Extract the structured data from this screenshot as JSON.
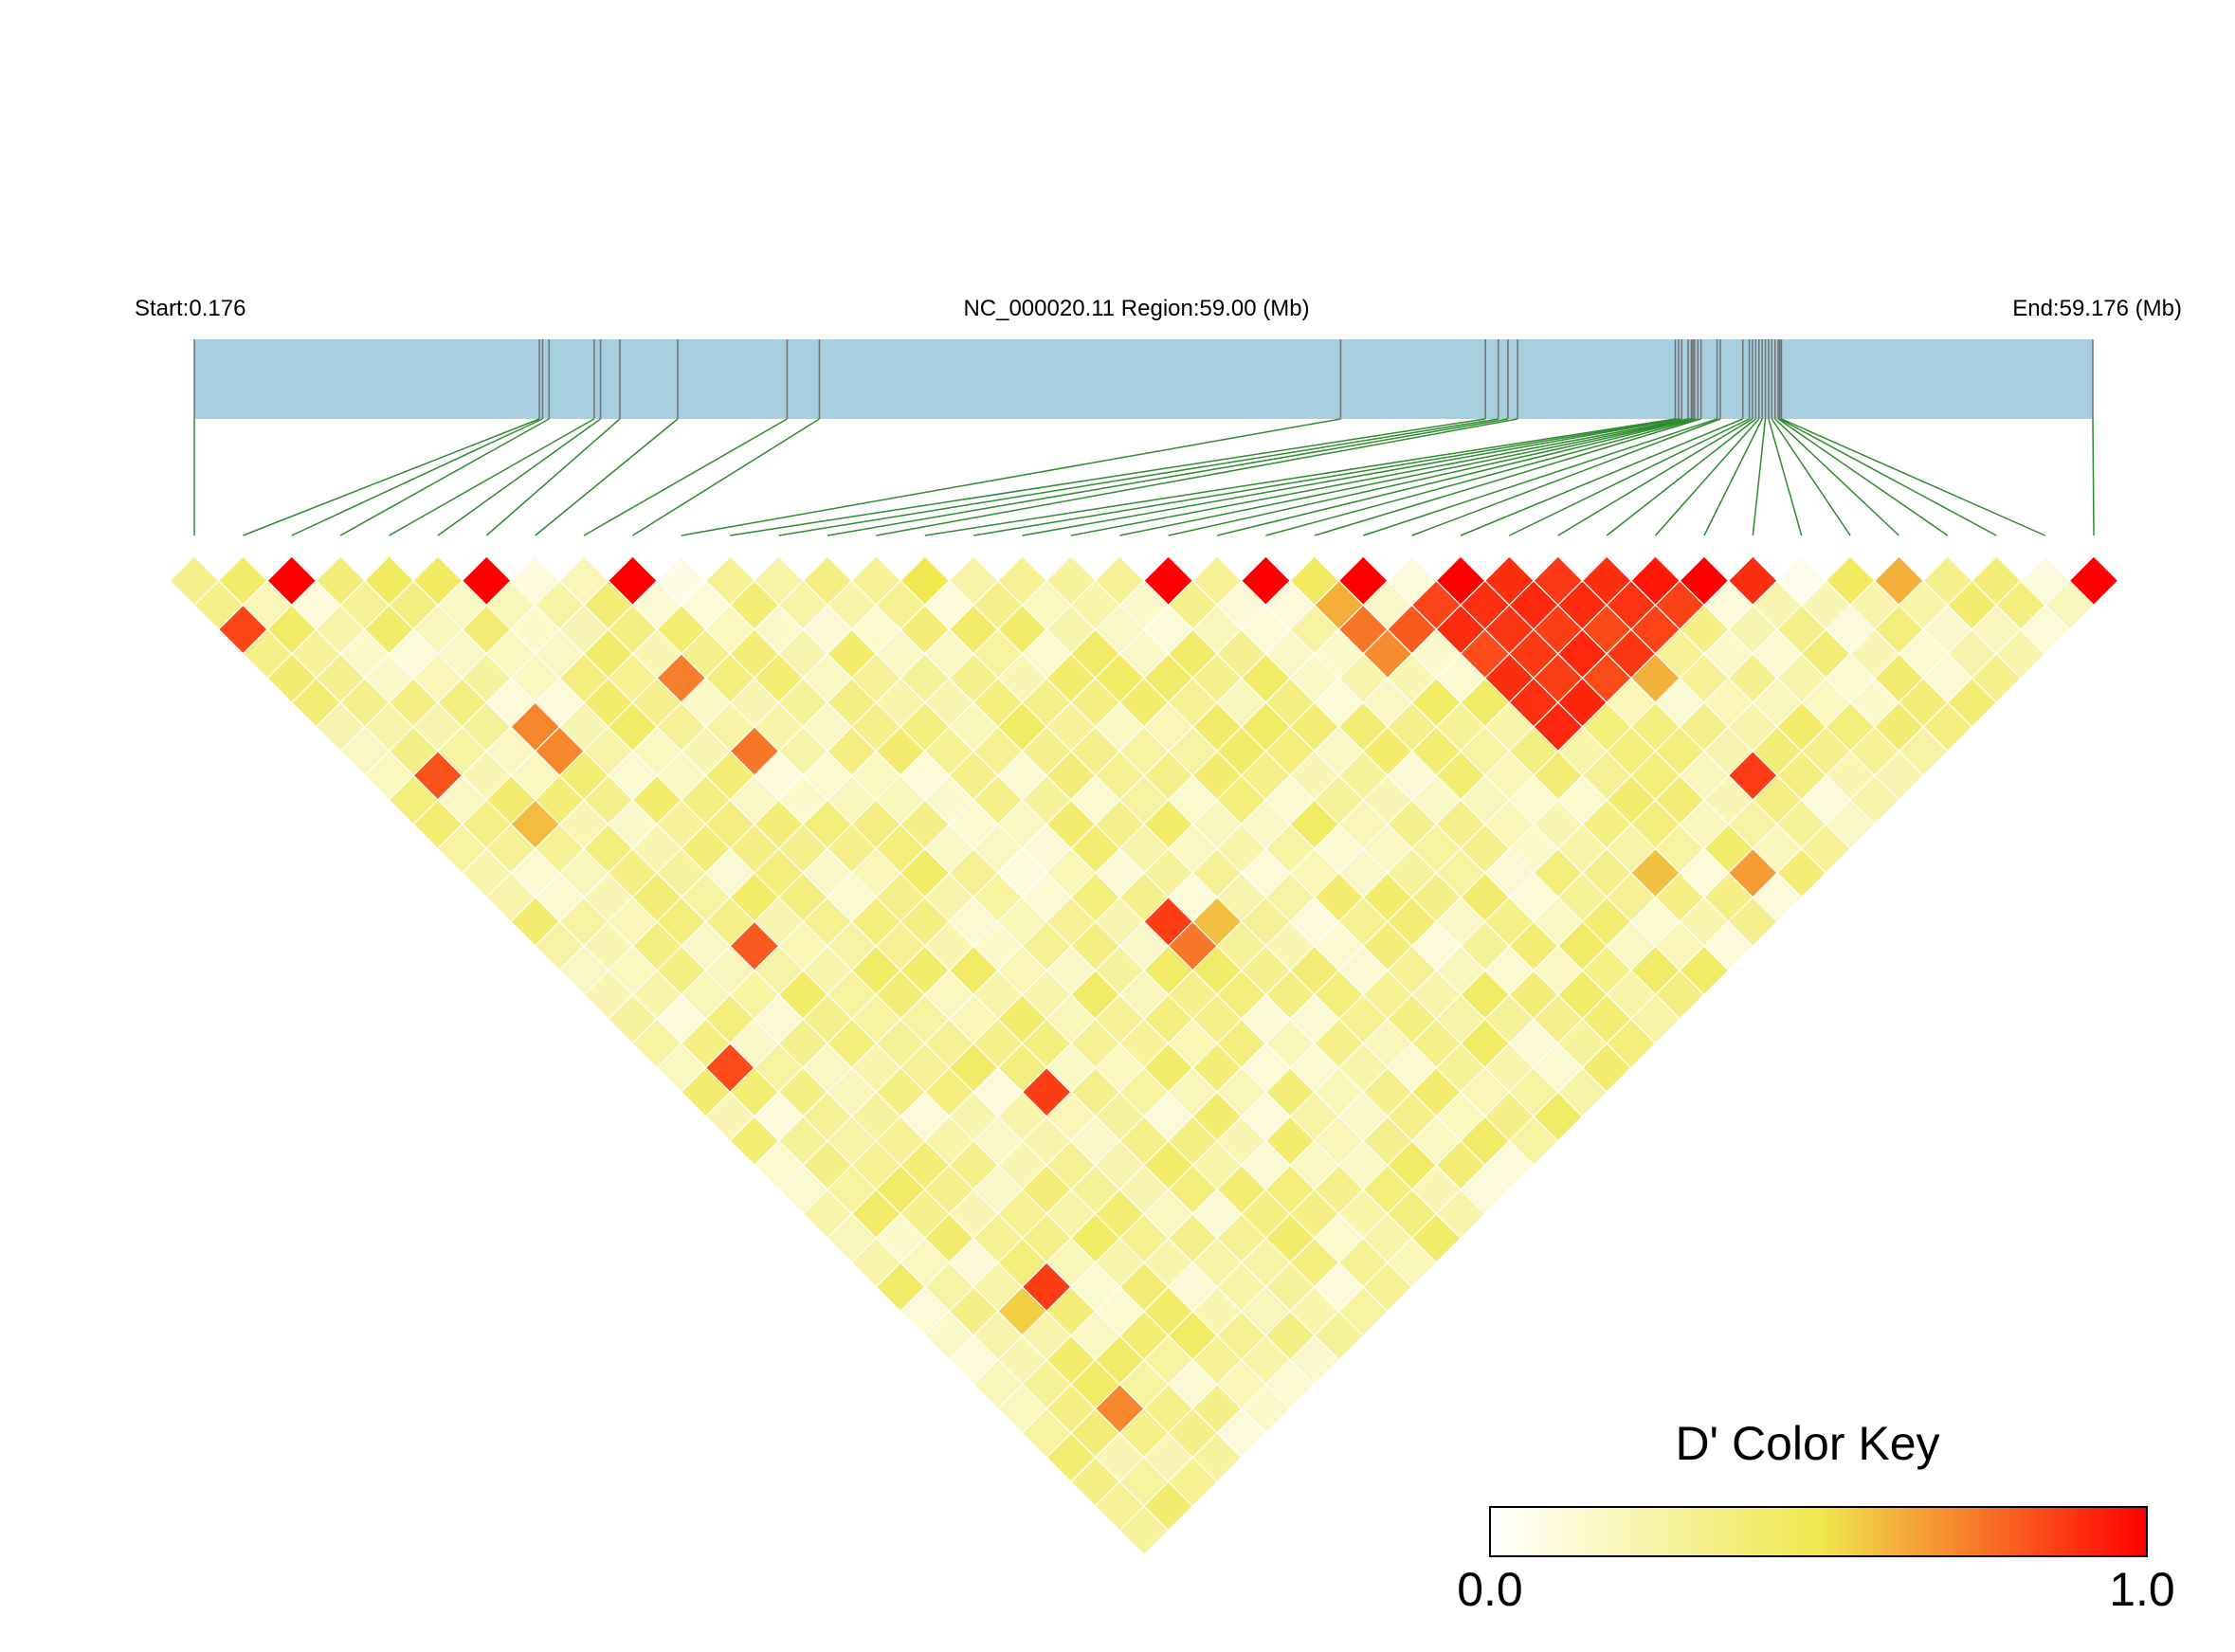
{
  "chart_data": {
    "type": "heatmap",
    "subtype": "linkage-disequilibrium-triangle",
    "start_label": "Start:0.176",
    "region_label": "NC_000020.11 Region:59.00 (Mb)",
    "end_label": "End:59.176 (Mb)",
    "start_mb": 0.176,
    "end_mb": 59.176,
    "snp_count": 40,
    "snp_positions_mb": [
      0.176,
      10.9,
      11.0,
      11.2,
      12.6,
      12.8,
      13.4,
      15.2,
      18.6,
      19.6,
      35.8,
      40.3,
      40.7,
      41.0,
      41.3,
      46.2,
      46.3,
      46.4,
      46.6,
      46.7,
      46.75,
      46.8,
      46.9,
      47.0,
      47.5,
      47.6,
      48.3,
      48.5,
      48.6,
      48.7,
      48.8,
      48.9,
      49.0,
      49.1,
      49.2,
      49.3,
      49.4,
      49.45,
      49.5,
      59.176
    ],
    "color_key": {
      "title": "D' Color Key",
      "min_label": "0.0",
      "max_label": "1.0",
      "min": 0.0,
      "max": 1.0,
      "stops": [
        "#ffffff",
        "#f0e84e",
        "#ff0000"
      ]
    },
    "ld_estimated_blocks": [
      {
        "from": 25,
        "to": 31,
        "dprime": 0.88,
        "note": "high-LD red block"
      }
    ],
    "ld_adjacent_dprime": [
      0.32,
      0.42,
      1.0,
      0.38,
      0.45,
      0.45,
      1.0,
      0.1,
      0.2,
      1.0,
      0.08,
      0.3,
      0.25,
      0.35,
      0.3,
      0.5,
      0.25,
      0.3,
      0.28,
      0.3,
      1.0,
      0.3,
      1.0,
      0.45,
      1.0,
      0.1,
      1.0,
      0.9,
      0.88,
      0.9,
      0.95,
      1.0,
      0.9,
      0.05,
      0.45,
      0.62,
      0.32,
      0.38,
      0.1,
      1.0
    ],
    "colors": {
      "track_fill": "#a8cfe0",
      "track_line": "#707070",
      "connector_line": "#2e8b2e",
      "cell_border": "#ffffff"
    }
  }
}
